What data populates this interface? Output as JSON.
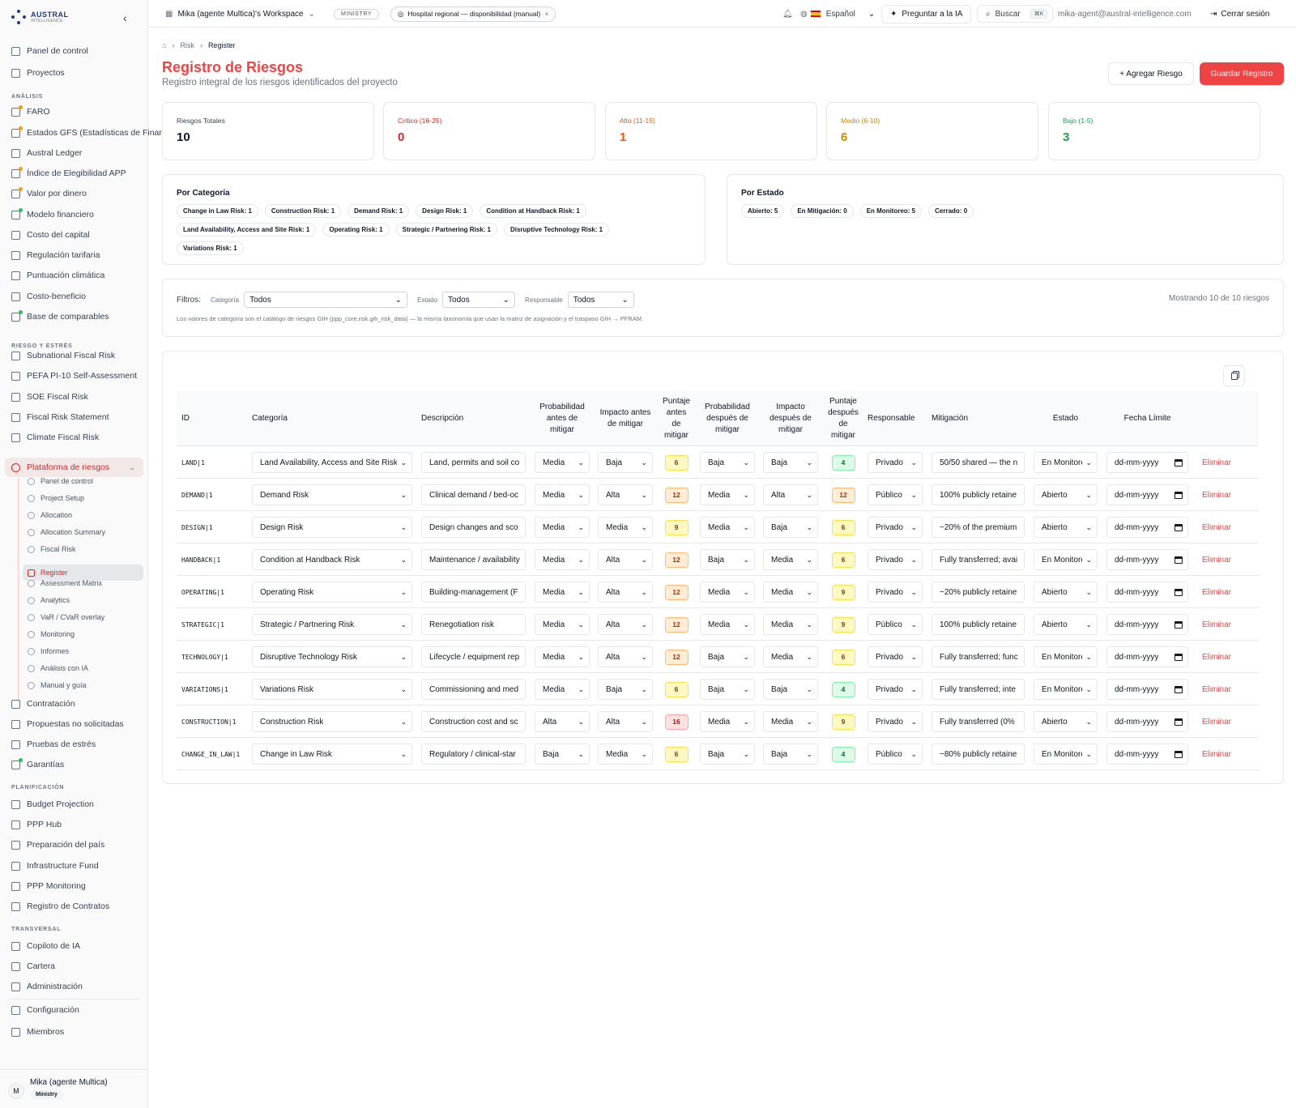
{
  "sidebar": {
    "brand": "AUSTRAL",
    "brand_sub": "INTELLIGENCE",
    "items_top": [
      {
        "label": "Panel de control",
        "icon": "dashboard-icon"
      },
      {
        "label": "Proyectos",
        "icon": "folder-icon"
      }
    ],
    "sections": {
      "analisis": "ANÁLISIS",
      "riesgo": "RIESGO Y ESTRÉS",
      "planificacion": "PLANIFICACIÓN",
      "transversal": "TRANSVERSAL"
    },
    "analisis_items": [
      {
        "label": "FARO"
      },
      {
        "label": "Estados GFS (Estadísticas de Finanzas Públicas)"
      },
      {
        "label": "Austral Ledger"
      },
      {
        "label": "Índice de Elegibilidad APP"
      },
      {
        "label": "Valor por dinero"
      },
      {
        "label": "Modelo financiero"
      },
      {
        "label": "Costo del capital"
      },
      {
        "label": "Regulación tarifaria"
      },
      {
        "label": "Puntuación climática"
      },
      {
        "label": "Costo-beneficio"
      },
      {
        "label": "Base de comparables"
      }
    ],
    "riesgo_items": [
      {
        "label": "Subnational Fiscal Risk"
      },
      {
        "label": "PEFA PI-10 Self-Assessment"
      },
      {
        "label": "SOE Fiscal Risk"
      },
      {
        "label": "Fiscal Risk Statement"
      },
      {
        "label": "Climate Fiscal Risk"
      },
      {
        "label": "Plataforma de riesgos"
      }
    ],
    "sub_items": [
      {
        "label": "Panel de control"
      },
      {
        "label": "Project Setup"
      },
      {
        "label": "Allocation"
      },
      {
        "label": "Allocation Summary"
      },
      {
        "label": "Fiscal Risk"
      },
      {
        "label": "Register"
      },
      {
        "label": "Assessment Matrix"
      },
      {
        "label": "Analytics"
      },
      {
        "label": "VaR / CVaR overlay"
      },
      {
        "label": "Monitoring"
      },
      {
        "label": "Informes"
      },
      {
        "label": "Análisis con IA"
      },
      {
        "label": "Manual y guía"
      }
    ],
    "riesgo_items_after": [
      {
        "label": "Contratación"
      },
      {
        "label": "Propuestas no solicitadas"
      },
      {
        "label": "Pruebas de estrés"
      },
      {
        "label": "Garantías"
      }
    ],
    "planificacion_items": [
      {
        "label": "Budget Projection"
      },
      {
        "label": "PPP Hub"
      },
      {
        "label": "Preparación del país"
      },
      {
        "label": "Infrastructure Fund"
      },
      {
        "label": "PPP Monitoring"
      },
      {
        "label": "Registro de Contratos"
      }
    ],
    "transversal_items": [
      {
        "label": "Copiloto de IA"
      },
      {
        "label": "Cartera"
      },
      {
        "label": "Administración"
      }
    ],
    "bottom_items": [
      {
        "label": "Configuración"
      },
      {
        "label": "Miembros"
      }
    ],
    "user": {
      "initial": "M",
      "name": "Mika (agente Multica)",
      "role": "Ministry"
    }
  },
  "topbar": {
    "workspace": "Mika (agente Multica)'s Workspace",
    "ministry_badge": "MINISTRY",
    "project": "Hospital regional — disponibilidad (manual)",
    "language": "Español",
    "ask_ai": "Preguntar a la IA",
    "search": "Buscar",
    "search_kbd": "⌘K",
    "email": "mika-agent@austral-intelligence.com",
    "logout": "Cerrar sesión"
  },
  "breadcrumb": [
    "Risk",
    "Register"
  ],
  "page": {
    "title": "Registro de Riesgos",
    "subtitle": "Registro integral de los riesgos identificados del proyecto",
    "add_button": "+ Agregar Riesgo",
    "save_button": "Guardar Registro"
  },
  "stats": [
    {
      "label": "Riesgos Totales",
      "value": "10",
      "color": "#111827"
    },
    {
      "label": "Crítico (16-25)",
      "value": "0",
      "color": "#dc2626"
    },
    {
      "label": "Alto (11-15)",
      "value": "1",
      "color": "#ea580c"
    },
    {
      "label": "Medio (6-10)",
      "value": "6",
      "color": "#ca8a04"
    },
    {
      "label": "Bajo (1-5)",
      "value": "3",
      "color": "#16a34a"
    }
  ],
  "by_category": {
    "title": "Por Categoría",
    "chips": [
      "Change in Law Risk: 1",
      "Construction Risk: 1",
      "Demand Risk: 1",
      "Design Risk: 1",
      "Condition at Handback Risk: 1",
      "Land Availability, Access and Site Risk: 1",
      "Operating Risk: 1",
      "Strategic / Partnering Risk: 1",
      "Disruptive Technology Risk: 1",
      "Variations Risk: 1"
    ]
  },
  "by_status": {
    "title": "Por Estado",
    "chips": [
      "Abierto: 5",
      "En Mitigación: 0",
      "En Monitoreo: 5",
      "Cerrado: 0"
    ]
  },
  "filters": {
    "label": "Filtros:",
    "category_label": "Categoría",
    "category_value": "Todos",
    "status_label": "Estado",
    "status_value": "Todos",
    "owner_label": "Responsable",
    "owner_value": "Todos",
    "note": "Los valores de categoría son el catálogo de riesgos GIH (ppp_core.risk.gih_risk_data) — la misma taxonomía que usan la matriz de asignación y el traspaso GIH → PFRAM.",
    "showing": "Mostrando 10 de 10 riesgos"
  },
  "table": {
    "headers": {
      "id": "ID",
      "category": "Categoría",
      "description": "Descripción",
      "prob_before": "Probabilidad antes de mitigar",
      "impact_before": "Impacto antes de mitigar",
      "score_before": "Puntaje antes de mitigar",
      "prob_after": "Probabilidad después de mitigar",
      "impact_after": "Impacto después de mitigar",
      "score_after": "Puntaje después de mitigar",
      "owner": "Responsable",
      "mitigation": "Mitigación",
      "status": "Estado",
      "deadline": "Fecha Límite"
    },
    "delete_label": "Eliminar",
    "date_placeholder": "dd-mm-yyyy",
    "rows": [
      {
        "id": "LAND|1",
        "category": "Land Availability, Access and Site Risk",
        "description": "Land, permits and soil co",
        "pb": "Media",
        "ib": "Baja",
        "sb": "6",
        "sb_level": "med",
        "pa": "Baja",
        "ia": "Baja",
        "sa": "4",
        "sa_level": "low",
        "owner": "Privado",
        "mitigation": "50/50 shared — the n",
        "status": "En Monitoreo"
      },
      {
        "id": "DEMAND|1",
        "category": "Demand Risk",
        "description": "Clinical demand / bed-oc",
        "pb": "Media",
        "ib": "Alta",
        "sb": "12",
        "sb_level": "high",
        "pa": "Media",
        "ia": "Alta",
        "sa": "12",
        "sa_level": "high",
        "owner": "Público",
        "mitigation": "100% publicly retaine",
        "status": "Abierto"
      },
      {
        "id": "DESIGN|1",
        "category": "Design Risk",
        "description": "Design changes and sco",
        "pb": "Media",
        "ib": "Media",
        "sb": "9",
        "sb_level": "med",
        "pa": "Media",
        "ia": "Baja",
        "sa": "6",
        "sa_level": "med",
        "owner": "Privado",
        "mitigation": "~20% of the premium",
        "status": "Abierto"
      },
      {
        "id": "HANDBACK|1",
        "category": "Condition at Handback Risk",
        "description": "Maintenance / availability",
        "pb": "Media",
        "ib": "Alta",
        "sb": "12",
        "sb_level": "high",
        "pa": "Baja",
        "ia": "Media",
        "sa": "6",
        "sa_level": "med",
        "owner": "Privado",
        "mitigation": "Fully transferred; avai",
        "status": "En Monitoreo"
      },
      {
        "id": "OPERATING|1",
        "category": "Operating Risk",
        "description": "Building-management (F",
        "pb": "Media",
        "ib": "Alta",
        "sb": "12",
        "sb_level": "high",
        "pa": "Media",
        "ia": "Media",
        "sa": "9",
        "sa_level": "med",
        "owner": "Privado",
        "mitigation": "~20% publicly retaine",
        "status": "Abierto"
      },
      {
        "id": "STRATEGIC|1",
        "category": "Strategic / Partnering Risk",
        "description": "Renegotiation risk",
        "pb": "Media",
        "ib": "Alta",
        "sb": "12",
        "sb_level": "high",
        "pa": "Media",
        "ia": "Media",
        "sa": "9",
        "sa_level": "med",
        "owner": "Público",
        "mitigation": "100% publicly retaine",
        "status": "Abierto"
      },
      {
        "id": "TECHNOLOGY|1",
        "category": "Disruptive Technology Risk",
        "description": "Lifecycle / equipment rep",
        "pb": "Media",
        "ib": "Alta",
        "sb": "12",
        "sb_level": "high",
        "pa": "Baja",
        "ia": "Media",
        "sa": "6",
        "sa_level": "med",
        "owner": "Privado",
        "mitigation": "Fully transferred; func",
        "status": "En Monitoreo"
      },
      {
        "id": "VARIATIONS|1",
        "category": "Variations Risk",
        "description": "Commissioning and med",
        "pb": "Media",
        "ib": "Baja",
        "sb": "6",
        "sb_level": "med",
        "pa": "Baja",
        "ia": "Baja",
        "sa": "4",
        "sa_level": "low",
        "owner": "Privado",
        "mitigation": "Fully transferred; inte",
        "status": "En Monitoreo"
      },
      {
        "id": "CONSTRUCTION|1",
        "category": "Construction Risk",
        "description": "Construction cost and sc",
        "pb": "Alta",
        "ib": "Alta",
        "sb": "16",
        "sb_level": "crit",
        "pa": "Media",
        "ia": "Media",
        "sa": "9",
        "sa_level": "med",
        "owner": "Privado",
        "mitigation": "Fully transferred (0%",
        "status": "Abierto"
      },
      {
        "id": "CHANGE_IN_LAW|1",
        "category": "Change in Law Risk",
        "description": "Regulatory / clinical-star",
        "pb": "Baja",
        "ib": "Media",
        "sb": "6",
        "sb_level": "med",
        "pa": "Baja",
        "ia": "Baja",
        "sa": "4",
        "sa_level": "low",
        "owner": "Público",
        "mitigation": "~80% publicly retaine",
        "status": "En Monitoreo"
      }
    ]
  }
}
